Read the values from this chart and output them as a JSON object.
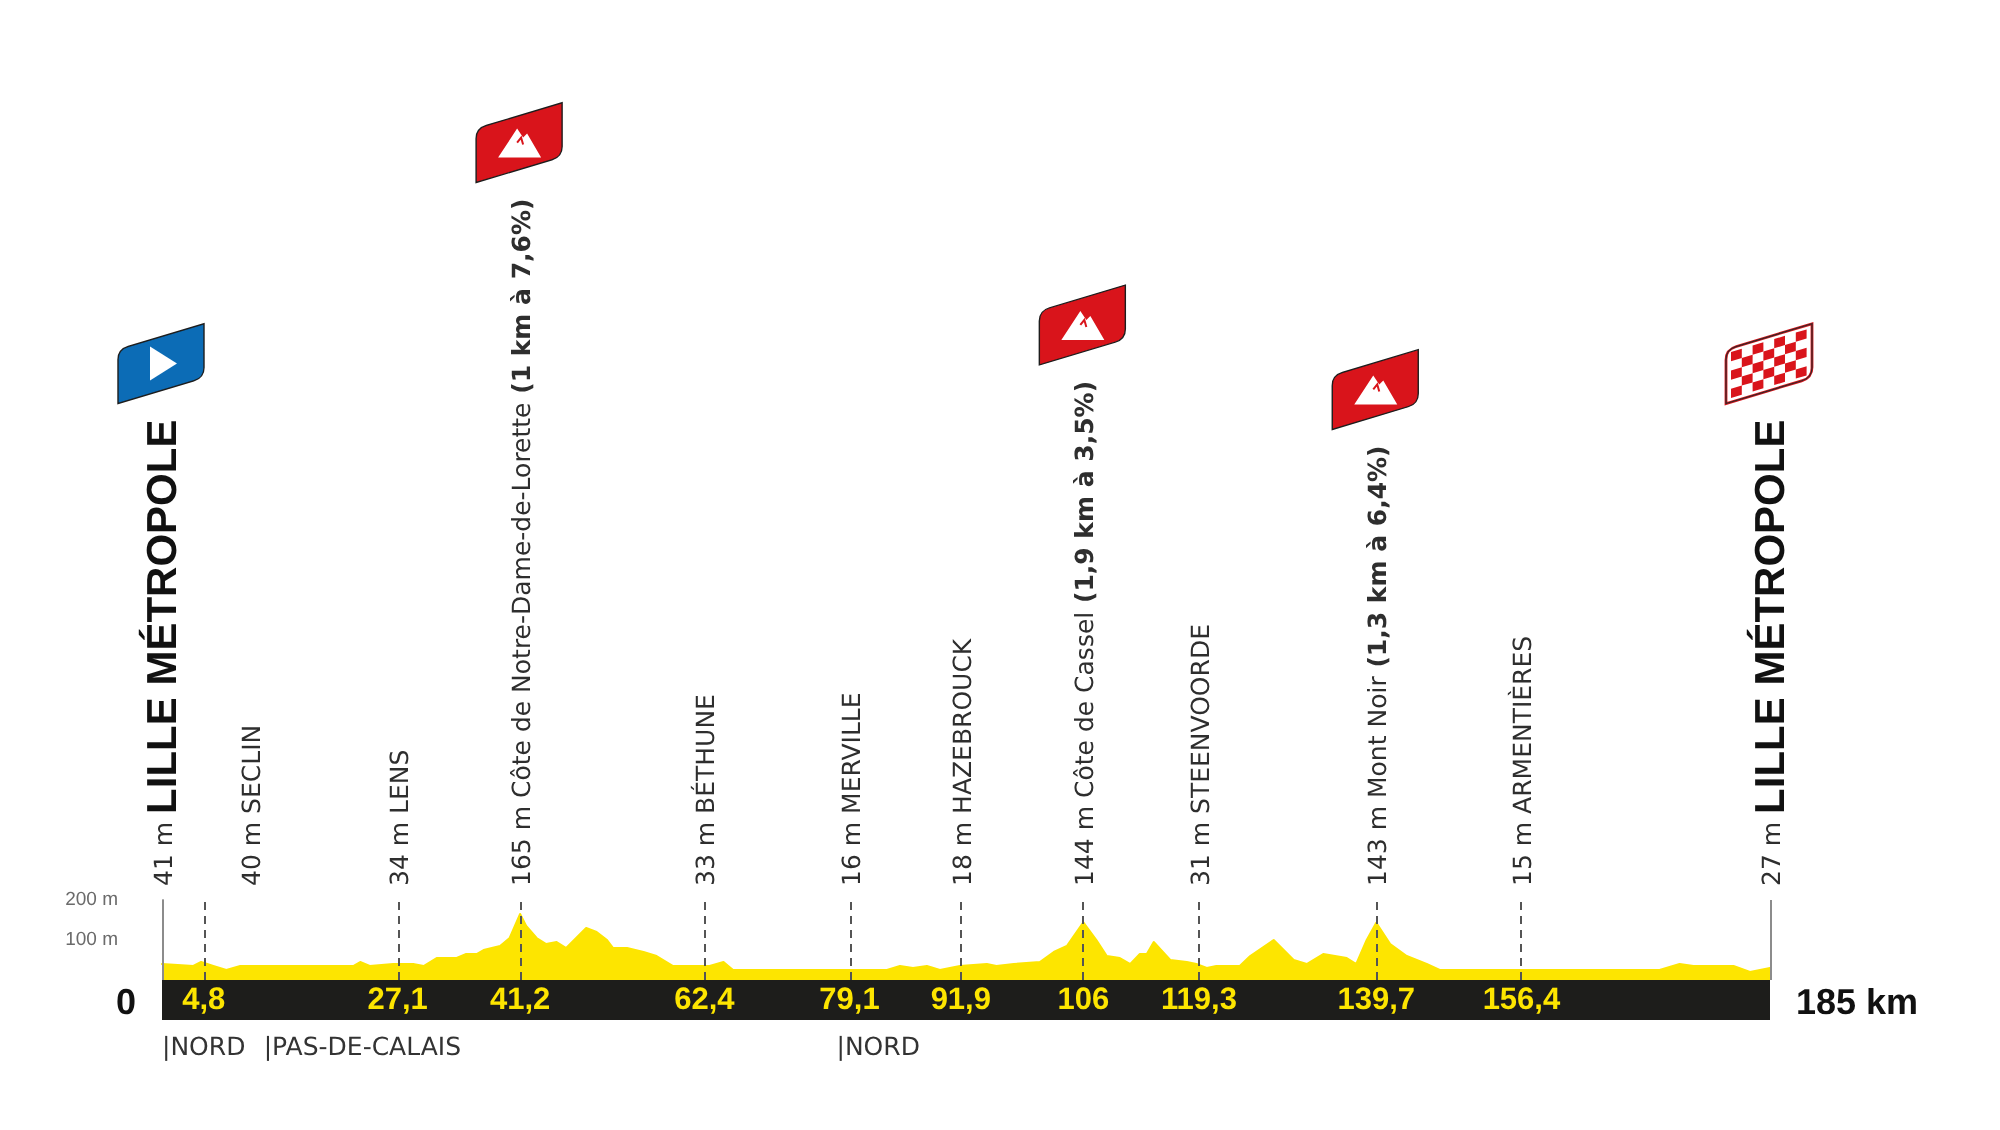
{
  "chart_data": {
    "type": "area",
    "x": [
      0,
      3.6,
      4.5,
      5.9,
      7.4,
      9,
      22,
      22.8,
      23.9,
      26.6,
      28.9,
      30.1,
      31.6,
      33.9,
      35,
      36.2,
      37,
      38.9,
      40,
      41.2,
      41.9,
      43.1,
      44.2,
      45.4,
      46.5,
      48.8,
      50,
      51.2,
      51.9,
      53.5,
      55.4,
      56.9,
      58.8,
      63,
      64.6,
      65.7,
      83.4,
      84.9,
      86.4,
      88,
      89.5,
      91.8,
      94.9,
      96,
      98,
      101,
      102.6,
      104.1,
      106,
      107.5,
      108.7,
      110.2,
      111.4,
      112.5,
      113.3,
      114.1,
      116,
      117.9,
      119,
      120.2,
      121.3,
      124,
      125.2,
      127.9,
      130.2,
      131.7,
      133.6,
      136.3,
      137.4,
      138.6,
      139.7,
      141.3,
      143.2,
      145.5,
      147,
      172.3,
      174.6,
      176.2,
      180.8,
      182.7,
      185
    ],
    "values": [
      40,
      35,
      45,
      35,
      25,
      35,
      35,
      45,
      35,
      40,
      40,
      35,
      55,
      55,
      65,
      65,
      75,
      85,
      105,
      165,
      135,
      105,
      90,
      95,
      80,
      130,
      120,
      100,
      80,
      80,
      70,
      60,
      35,
      35,
      45,
      25,
      25,
      35,
      30,
      35,
      25,
      35,
      40,
      35,
      40,
      45,
      70,
      85,
      144,
      100,
      60,
      55,
      40,
      65,
      65,
      95,
      50,
      45,
      40,
      30,
      35,
      35,
      60,
      100,
      50,
      40,
      65,
      55,
      40,
      100,
      143,
      90,
      60,
      40,
      25,
      25,
      40,
      35,
      35,
      20,
      30
    ],
    "color": "#fde500",
    "xlim": [
      0,
      185
    ],
    "xticks": [
      {
        "value": 4.8,
        "label": "4,8"
      },
      {
        "value": 27.1,
        "label": "27,1"
      },
      {
        "value": 41.2,
        "label": "41,2"
      },
      {
        "value": 62.4,
        "label": "62,4"
      },
      {
        "value": 79.1,
        "label": "79,1"
      },
      {
        "value": 91.9,
        "label": "91,9"
      },
      106,
      {
        "value": 119.3,
        "label": "119,3"
      },
      {
        "value": 139.7,
        "label": "139,7"
      },
      {
        "value": 156.4,
        "label": "156,4"
      }
    ],
    "ylim": [
      0,
      200
    ],
    "yticks": [
      {
        "value": 100,
        "label": "100 m"
      },
      {
        "value": 200,
        "label": "200 m"
      }
    ],
    "ref_lines": [
      {
        "axis": "x",
        "value": 0,
        "label": "41 m LILLE MÉTROPOLE",
        "color": "#8c8c8c",
        "line_style": "solid"
      },
      {
        "axis": "x",
        "value": 4.8,
        "label": "40 m SECLIN",
        "color": "#555555",
        "line_style": "dashed"
      },
      {
        "axis": "x",
        "value": 27.1,
        "label": "34 m LENS",
        "color": "#555555",
        "line_style": "dashed"
      },
      {
        "axis": "x",
        "value": 41.2,
        "label": "165 m Côte de Notre-Dame-de-Lorette (1 km à 7,6%)",
        "color": "#555555",
        "line_style": "dashed"
      },
      {
        "axis": "x",
        "value": 62.4,
        "label": "33 m BÉTHUNE",
        "color": "#555555",
        "line_style": "dashed"
      },
      {
        "axis": "x",
        "value": 79.1,
        "label": "16 m MERVILLE",
        "color": "#555555",
        "line_style": "dashed"
      },
      {
        "axis": "x",
        "value": 91.9,
        "label": "18 m HAZEBROUCK",
        "color": "#555555",
        "line_style": "dashed"
      },
      {
        "axis": "x",
        "value": 106,
        "label": "144 m Côte de Cassel (1,9 km à 3,5%)",
        "color": "#555555",
        "line_style": "dashed"
      },
      {
        "axis": "x",
        "value": 119.3,
        "label": "31 m STEENVOORDE",
        "color": "#555555",
        "line_style": "dashed"
      },
      {
        "axis": "x",
        "value": 139.7,
        "label": "143 m Mont Noir (1,3 km à 6,4%)",
        "color": "#555555",
        "line_style": "dashed"
      },
      {
        "axis": "x",
        "value": 156.4,
        "label": "15 m ARMENTIÈRES",
        "color": "#555555",
        "line_style": "dashed"
      },
      {
        "axis": "x",
        "value": 185,
        "label": "27 m LILLE MÉTROPOLE",
        "color": "#8c8c8c",
        "line_style": "solid"
      }
    ],
    "annotations": [
      "0",
      "185 km",
      {
        "text": "|NORD",
        "x": 0,
        "y": 0
      },
      {
        "text": "|PAS-DE-CALAIS",
        "x": 11.7,
        "y": 0
      },
      {
        "text": "|NORD",
        "x": 77.6,
        "y": 0
      }
    ]
  }
}
